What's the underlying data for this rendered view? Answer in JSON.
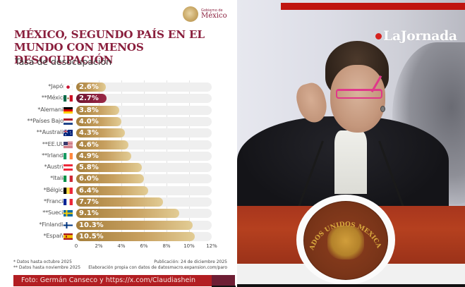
{
  "infographic": {
    "logo": {
      "small": "Gobierno de",
      "big": "México"
    },
    "title_line1": "MÉXICO, SEGUNDO PAÍS EN EL",
    "title_line2": "MUNDO CON MENOS DESOCUPACIÓN",
    "subtitle": "Tasa de desocupación",
    "rows": [
      {
        "label": "*Japón",
        "value": "2.6%",
        "flag": "japan"
      },
      {
        "label": "**México",
        "value": "2.7%",
        "flag": "mexico"
      },
      {
        "label": "*Alemania",
        "value": "3.8%",
        "flag": "germany"
      },
      {
        "label": "**Países Bajos",
        "value": "4.0%",
        "flag": "netherlands"
      },
      {
        "label": "**Australia",
        "value": "4.3%",
        "flag": "australia"
      },
      {
        "label": "**EE.UU.",
        "value": "4.6%",
        "flag": "usa"
      },
      {
        "label": "**Irlanda",
        "value": "4.9%",
        "flag": "ireland"
      },
      {
        "label": "*Austria",
        "value": "5.8%",
        "flag": "austria"
      },
      {
        "label": "*Italia",
        "value": "6.0%",
        "flag": "italy"
      },
      {
        "label": "*Bélgica",
        "value": "6.4%",
        "flag": "belgium"
      },
      {
        "label": "*Francia",
        "value": "7.7%",
        "flag": "france"
      },
      {
        "label": "**Suecia",
        "value": "9.1%",
        "flag": "sweden"
      },
      {
        "label": "*Finlandia",
        "value": "10.3%",
        "flag": "finland"
      },
      {
        "label": "*España",
        "value": "10.5%",
        "flag": "spain"
      }
    ],
    "axis_ticks": [
      "0",
      "2%",
      "4%",
      "6%",
      "8%",
      "10%",
      "12%"
    ],
    "notes": {
      "note1": "* Datos hasta octubre 2025",
      "note2": "** Datos hasta noviembre 2025",
      "publication": "Publicación: 24 de diciembre 2025",
      "source": "Elaboración propia con datos de datosmacro.expansion.com/paro"
    },
    "colors": {
      "accent": "#8a1f3d",
      "bar_gold": "#c7a060",
      "credit_red": "#b21e22"
    }
  },
  "photo": {
    "credit": "Foto: Germán Canseco y https://x.com/Claudiashein",
    "brand_logo": "LaJornada",
    "seal_text": "ESTADOS UNIDOS MEXICANOS"
  },
  "chart_data": {
    "type": "bar",
    "orientation": "horizontal",
    "title": "MÉXICO, SEGUNDO PAÍS EN EL MUNDO CON MENOS DESOCUPACIÓN",
    "subtitle": "Tasa de desocupación",
    "categories": [
      "Japón",
      "México",
      "Alemania",
      "Países Bajos",
      "Australia",
      "EE.UU.",
      "Irlanda",
      "Austria",
      "Italia",
      "Bélgica",
      "Francia",
      "Suecia",
      "Finlandia",
      "España"
    ],
    "values": [
      2.6,
      2.7,
      3.8,
      4.0,
      4.3,
      4.6,
      4.9,
      5.8,
      6.0,
      6.4,
      7.7,
      9.1,
      10.3,
      10.5
    ],
    "highlight": "México",
    "xlabel": "",
    "ylabel": "",
    "xlim": [
      0,
      12
    ],
    "x_ticks": [
      "0",
      "2%",
      "4%",
      "6%",
      "8%",
      "10%",
      "12%"
    ],
    "grid": true,
    "annotations": [
      "* Datos hasta octubre 2025",
      "** Datos hasta noviembre 2025"
    ]
  }
}
